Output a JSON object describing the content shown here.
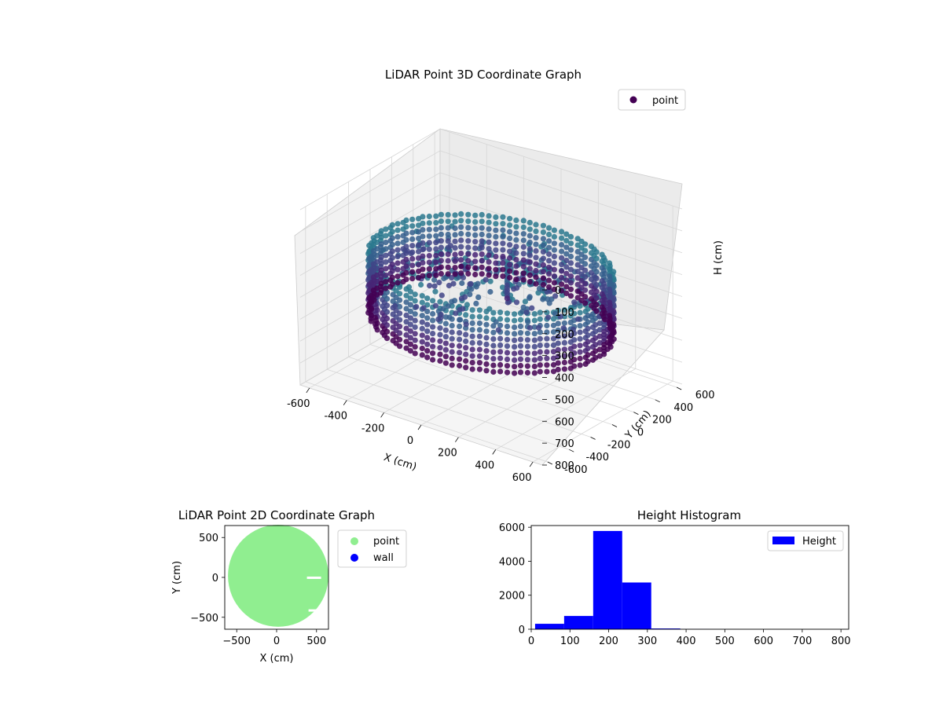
{
  "chart_data": [
    {
      "type": "scatter",
      "projection": "3d",
      "title": "LiDAR Point 3D Coordinate Graph",
      "xlabel": "X (cm)",
      "ylabel": "Y (cm)",
      "zlabel": "H (cm)",
      "xlim": [
        -650,
        650
      ],
      "ylim": [
        -650,
        650
      ],
      "zlim": [
        800,
        0
      ],
      "xticks": [
        -600,
        -400,
        -200,
        0,
        200,
        400,
        600
      ],
      "yticks": [
        -600,
        -400,
        -200,
        0,
        200,
        400,
        600
      ],
      "zticks": [
        0,
        100,
        200,
        300,
        400,
        500,
        600,
        700,
        800
      ],
      "legend": {
        "entries": [
          "point"
        ],
        "placement": "upper-right"
      },
      "colormap": "viridis",
      "marker_color": "#440154",
      "grid": true,
      "series": [
        {
          "name": "point",
          "description_of_shape": "circular wall ring of points",
          "ring_radius": 560,
          "wall_height_range": [
            250,
            520
          ]
        }
      ]
    },
    {
      "type": "scatter",
      "title": "LiDAR Point 2D Coordinate Graph",
      "xlabel": "X (cm)",
      "ylabel": "Y (cm)",
      "xlim": [
        -650,
        650
      ],
      "ylim": [
        -650,
        650
      ],
      "xticks": [
        -500,
        0,
        500
      ],
      "yticks": [
        -500,
        0,
        500
      ],
      "legend": {
        "entries": [
          "point",
          "wall"
        ],
        "placement": "outside-right"
      },
      "series": [
        {
          "name": "point",
          "color": "#90ee90",
          "region": "disk",
          "radius": 600
        },
        {
          "name": "wall",
          "color": "#0000ff",
          "points": []
        }
      ]
    },
    {
      "type": "bar",
      "title": "Height Histogram",
      "xlim": [
        0,
        820
      ],
      "ylim": [
        0,
        6100
      ],
      "xticks": [
        0,
        100,
        200,
        300,
        400,
        500,
        600,
        700,
        800
      ],
      "yticks": [
        0,
        2000,
        4000,
        6000
      ],
      "legend": {
        "entries": [
          "Height"
        ],
        "placement": "upper-right"
      },
      "color": "#0000ff",
      "bins": [
        {
          "from": 10,
          "to": 85,
          "value": 320
        },
        {
          "from": 85,
          "to": 160,
          "value": 780
        },
        {
          "from": 160,
          "to": 235,
          "value": 5780
        },
        {
          "from": 235,
          "to": 310,
          "value": 2750
        },
        {
          "from": 310,
          "to": 385,
          "value": 45
        },
        {
          "from": 385,
          "to": 460,
          "value": 10
        },
        {
          "from": 460,
          "to": 535,
          "value": 4
        },
        {
          "from": 535,
          "to": 610,
          "value": 2
        },
        {
          "from": 610,
          "to": 685,
          "value": 1
        },
        {
          "from": 685,
          "to": 760,
          "value": 1
        },
        {
          "from": 760,
          "to": 800,
          "value": 1
        }
      ],
      "series": [
        {
          "name": "Height"
        }
      ]
    }
  ]
}
